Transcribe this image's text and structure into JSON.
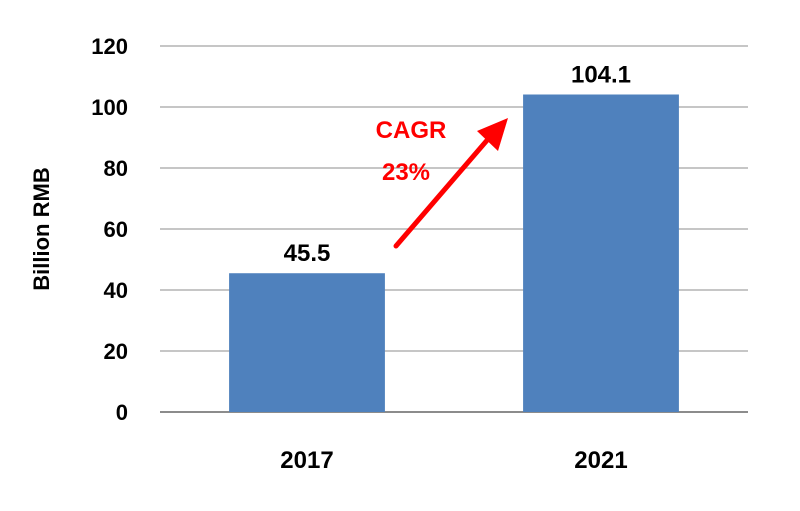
{
  "chart_data": {
    "type": "bar",
    "categories": [
      "2017",
      "2021"
    ],
    "values": [
      45.5,
      104.1
    ],
    "data_labels": [
      "45.5",
      "104.1"
    ],
    "title": "",
    "xlabel": "",
    "ylabel": "Billion RMB",
    "ylim": [
      0,
      120
    ],
    "yticks": [
      "0",
      "20",
      "40",
      "60",
      "80",
      "100",
      "120"
    ],
    "grid": true,
    "legend": "none",
    "bar_color": "#4f81bd",
    "annotation": {
      "line1": "CAGR",
      "line2": "23%",
      "color": "#ff0000"
    }
  }
}
